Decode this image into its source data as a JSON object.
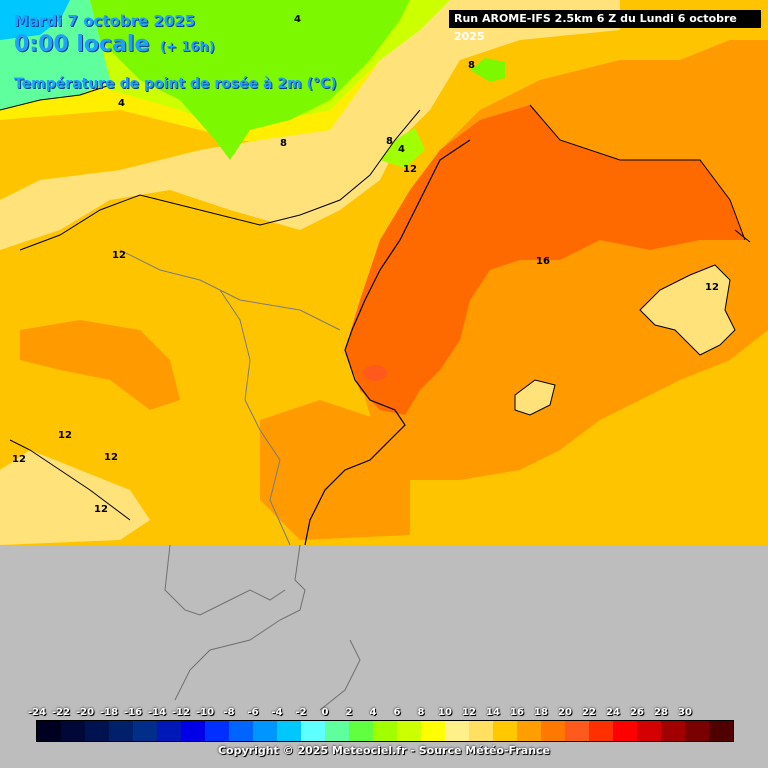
{
  "header": {
    "date": "Mardi 7 octobre 2025",
    "time": "0:00 locale",
    "lead": "(+ 16h)",
    "parameter": "Température de point de rosée à 2m (°C)"
  },
  "run_label": "Run AROME-IFS 2.5km 6 Z du Lundi 6 octobre 2025",
  "copyright": "Copyright © 2025 Meteociel.fr - Source Météo-France",
  "contour_labels": [
    "4",
    "4",
    "8",
    "8",
    "8",
    "4",
    "12",
    "12",
    "16",
    "12",
    "12",
    "12",
    "12",
    "12"
  ],
  "colorbar": {
    "ticks": [
      "-24",
      "-22",
      "-20",
      "-18",
      "-16",
      "-14",
      "-12",
      "-10",
      "-8",
      "-6",
      "-4",
      "-2",
      "0",
      "2",
      "4",
      "6",
      "8",
      "10",
      "12",
      "14",
      "16",
      "18",
      "20",
      "22",
      "24",
      "26",
      "28",
      "30"
    ],
    "colors": [
      "#000020",
      "#000838",
      "#001250",
      "#00206a",
      "#002e88",
      "#0018b8",
      "#0000e8",
      "#0030ff",
      "#0064ff",
      "#0096ff",
      "#00c8ff",
      "#60ffff",
      "#60ff9e",
      "#60ff40",
      "#a0ff00",
      "#ccff00",
      "#ffff00",
      "#fff08a",
      "#ffe060",
      "#ffc800",
      "#ff9e00",
      "#ff7800",
      "#ff5a1e",
      "#ff3000",
      "#ff0000",
      "#d20000",
      "#a00000",
      "#780000",
      "#500000"
    ]
  },
  "colors": {
    "no_data": "#bdbdbd",
    "sea_main": "#ffc400",
    "warm_core": "#ff6a00",
    "orange": "#ff9a00",
    "light_yellow": "#ffe27a",
    "green": "#7cf800",
    "title": "#1fa0ff"
  }
}
